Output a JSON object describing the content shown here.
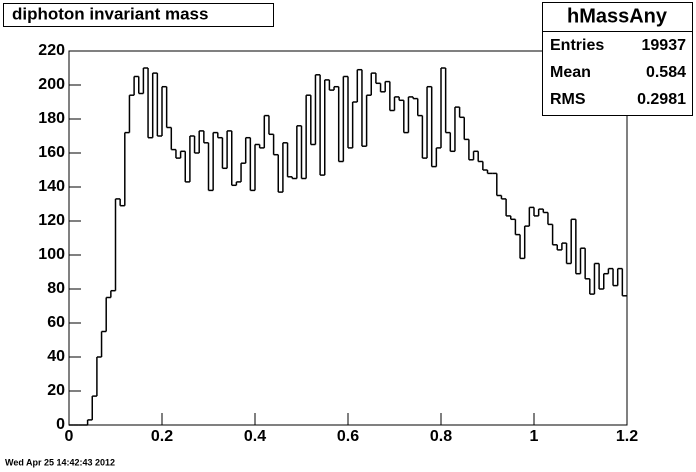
{
  "chart_data": {
    "type": "histogram",
    "title": "diphoton invariant mass",
    "bins": [
      0,
      0.01,
      0.02,
      0.03,
      0.04,
      0.05,
      0.06,
      0.07,
      0.08,
      0.09,
      0.1,
      0.11,
      0.12,
      0.13,
      0.14,
      0.15,
      0.16,
      0.17,
      0.18,
      0.19,
      0.2,
      0.21,
      0.22,
      0.23,
      0.24,
      0.25,
      0.26,
      0.27,
      0.28,
      0.29,
      0.3,
      0.31,
      0.32,
      0.33,
      0.34,
      0.35,
      0.36,
      0.37,
      0.38,
      0.39,
      0.4,
      0.41,
      0.42,
      0.43,
      0.44,
      0.45,
      0.46,
      0.47,
      0.48,
      0.49,
      0.5,
      0.51,
      0.52,
      0.53,
      0.54,
      0.55,
      0.56,
      0.57,
      0.58,
      0.59,
      0.6,
      0.61,
      0.62,
      0.63,
      0.64,
      0.65,
      0.66,
      0.67,
      0.68,
      0.69,
      0.7,
      0.71,
      0.72,
      0.73,
      0.74,
      0.75,
      0.76,
      0.77,
      0.78,
      0.79,
      0.8,
      0.81,
      0.82,
      0.83,
      0.84,
      0.85,
      0.86,
      0.87,
      0.88,
      0.89,
      0.9,
      0.91,
      0.92,
      0.93,
      0.94,
      0.95,
      0.96,
      0.97,
      0.98,
      0.99,
      1,
      1.01,
      1.02,
      1.03,
      1.04,
      1.05,
      1.06,
      1.07,
      1.08,
      1.09,
      1.1,
      1.11,
      1.12,
      1.13,
      1.14,
      1.15,
      1.16,
      1.17,
      1.18,
      1.19,
      1.2
    ],
    "counts": [
      0,
      0,
      0,
      0,
      3,
      17,
      40,
      55,
      75,
      79,
      133,
      129,
      172,
      194,
      205,
      195,
      210,
      169,
      207,
      170,
      199,
      175,
      162,
      157,
      161,
      143,
      170,
      160,
      173,
      166,
      138,
      172,
      169,
      151,
      173,
      141,
      143,
      154,
      169,
      138,
      165,
      163,
      182,
      171,
      159,
      137,
      166,
      146,
      145,
      176,
      145,
      194,
      165,
      206,
      147,
      203,
      197,
      199,
      155,
      205,
      163,
      190,
      209,
      164,
      194,
      207,
      201,
      196,
      202,
      185,
      193,
      191,
      172,
      193,
      192,
      182,
      157,
      199,
      152,
      163,
      210,
      172,
      161,
      187,
      181,
      168,
      156,
      161,
      155,
      150,
      148,
      148,
      135,
      133,
      123,
      121,
      112,
      98,
      117,
      128,
      123,
      127,
      125,
      118,
      106,
      103,
      107,
      95,
      121,
      89,
      104,
      86,
      77,
      95,
      80,
      89,
      92,
      82,
      92,
      76
    ],
    "color": "#000000",
    "xlim": [
      0,
      1.2
    ],
    "xticks": [
      0,
      0.2,
      0.4,
      0.6,
      0.8,
      1,
      1.2
    ],
    "ylim": [
      0,
      220
    ],
    "yticks": [
      0,
      20,
      40,
      60,
      80,
      100,
      120,
      140,
      160,
      180,
      200,
      220
    ],
    "stats": {
      "name": "hMassAny",
      "rows": [
        {
          "label": "Entries",
          "value": 19937
        },
        {
          "label": "Mean",
          "value": 0.584
        },
        {
          "label": "RMS",
          "value": 0.2981
        }
      ]
    },
    "footer": "Wed Apr 25 14:42:43 2012"
  }
}
